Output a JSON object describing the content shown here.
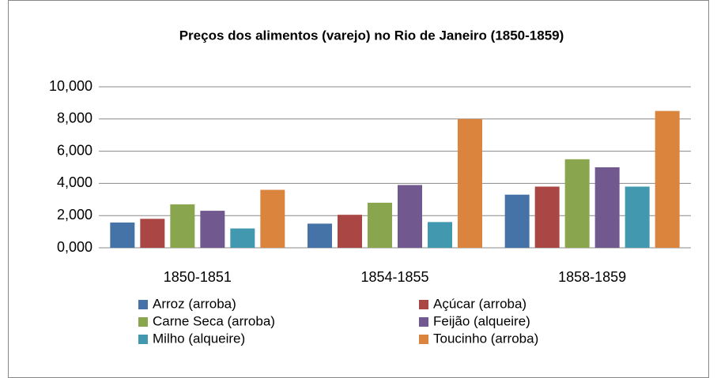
{
  "chart_data": {
    "type": "bar",
    "title": "Preços dos alimentos (varejo) no Rio de Janeiro (1850-1859)",
    "categories": [
      "1850-1851",
      "1854-1855",
      "1858-1859"
    ],
    "series": [
      {
        "name": "Arroz (arroba)",
        "color": "#4572a7",
        "values": [
          1.57,
          1.5,
          3.3
        ]
      },
      {
        "name": "Açúcar (arroba)",
        "color": "#aa4643",
        "values": [
          1.8,
          2.05,
          3.8
        ]
      },
      {
        "name": "Carne Seca (arroba)",
        "color": "#89a54e",
        "values": [
          2.7,
          2.8,
          5.5
        ]
      },
      {
        "name": "Feijão (alqueire)",
        "color": "#71588f",
        "values": [
          2.3,
          3.9,
          5.0
        ]
      },
      {
        "name": "Milho (alqueire)",
        "color": "#4198af",
        "values": [
          1.2,
          1.6,
          3.8
        ]
      },
      {
        "name": "Toucinho (arroba)",
        "color": "#db843d",
        "values": [
          3.6,
          8.0,
          8.5
        ]
      }
    ],
    "ylim": [
      0,
      10
    ],
    "yticks": [
      {
        "value": 0,
        "label": "0,000"
      },
      {
        "value": 2,
        "label": "2,000"
      },
      {
        "value": 4,
        "label": "4,000"
      },
      {
        "value": 6,
        "label": "6,000"
      },
      {
        "value": 8,
        "label": "8,000"
      },
      {
        "value": 10,
        "label": "10,000"
      }
    ],
    "grid": true,
    "legend": "bottom"
  }
}
